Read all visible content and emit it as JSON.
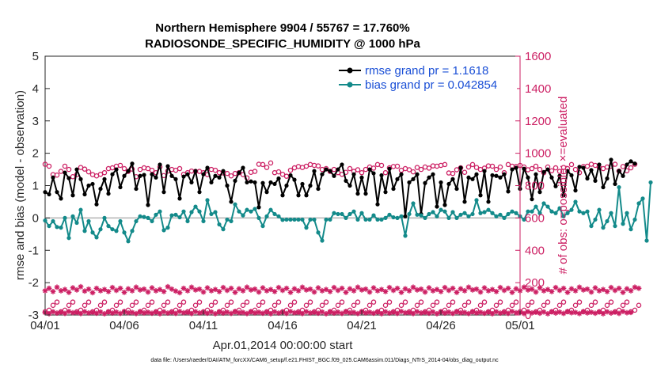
{
  "chart_data": {
    "type": "line",
    "title_line1": "Northern Hemisphere 9904 / 55767 = 17.760%",
    "title_line2": "RADIOSONDE_SPECIFIC_HUMIDITY @ 1000 hPa",
    "xlabel": "Apr.01,2014 00:00:00 start",
    "ylabel_left": "rmse and bias (model - observation)",
    "ylabel_right": "# of obs: o=possible; ×=evaluated",
    "x_tick_labels": [
      "04/01",
      "04/06",
      "04/11",
      "04/16",
      "04/21",
      "04/26",
      "05/01"
    ],
    "x_tick_days": [
      0,
      5,
      10,
      15,
      20,
      25,
      30
    ],
    "xlim_days": [
      0,
      30
    ],
    "ylim_left": [
      -3,
      5
    ],
    "y_ticks_left": [
      "-3",
      "-2",
      "-1",
      "0",
      "1",
      "2",
      "3",
      "4",
      "5"
    ],
    "ylim_right": [
      0,
      1600
    ],
    "y_ticks_right": [
      "0",
      "200",
      "400",
      "600",
      "800",
      "1000",
      "1200",
      "1400",
      "1600"
    ],
    "zero_line": 0,
    "legend": [
      {
        "label": "rmse grand pr = 1.1618",
        "color": "#000000"
      },
      {
        "label": "bias grand pr = 0.042854",
        "color": "#138a8a"
      }
    ],
    "colors": {
      "rmse": "#000000",
      "bias": "#138a8a",
      "counts": "#cc1f63",
      "zero": "#b3b3b3",
      "legend_text": "#1a4fd6"
    },
    "time_step_days": 0.25,
    "series": [
      {
        "name": "rmse",
        "axis": "left",
        "values": [
          0.8,
          0.73,
          1.25,
          0.8,
          0.6,
          1.4,
          1.23,
          0.7,
          1.5,
          1.2,
          0.73,
          1.0,
          1.05,
          0.42,
          0.9,
          1.2,
          0.75,
          1.35,
          1.5,
          0.95,
          1.3,
          1.45,
          1.68,
          0.9,
          1.3,
          1.33,
          0.4,
          1.35,
          1.25,
          1.65,
          0.8,
          1.6,
          1.3,
          1.2,
          0.6,
          1.28,
          1.35,
          1.1,
          1.45,
          0.8,
          1.35,
          1.55,
          1.1,
          1.3,
          1.25,
          1.45,
          1.0,
          0.5,
          1.15,
          1.4,
          1.55,
          1.1,
          1.13,
          1.1,
          0.33,
          1.08,
          0.8,
          1.1,
          1.05,
          1.22,
          0.7,
          1.0,
          1.32,
          1.18,
          0.7,
          1.05,
          0.7,
          1.0,
          1.45,
          0.9,
          1.35,
          1.5,
          1.45,
          1.3,
          1.5,
          1.65,
          1.15,
          1.0,
          1.35,
          0.75,
          1.25,
          0.75,
          1.5,
          1.38,
          0.42,
          1.32,
          0.8,
          1.52,
          0.9,
          1.2,
          1.35,
          0.05,
          1.1,
          1.2,
          1.35,
          0.12,
          1.08,
          1.25,
          1.35,
          0.35,
          1.1,
          0.4,
          1.05,
          1.2,
          0.9,
          1.55,
          0.5,
          1.25,
          1.2,
          1.35,
          0.7,
          1.45,
          0.5,
          1.32,
          1.3,
          1.25,
          1.35,
          0.82,
          1.5,
          1.55,
          0.9,
          1.52,
          1.25,
          0.58,
          1.35,
          0.8,
          1.42,
          1.5,
          1.25,
          0.98,
          1.3,
          0.7,
          1.45,
          1.32,
          0.85,
          1.58,
          1.55,
          1.22,
          1.48,
          1.15,
          1.65,
          0.95,
          1.22,
          1.8,
          1.05,
          1.45,
          1.3,
          1.65,
          1.75,
          1.68
        ]
      },
      {
        "name": "bias",
        "axis": "left",
        "values": [
          -0.08,
          -0.25,
          -0.1,
          -0.28,
          -0.3,
          0.0,
          -0.62,
          0.05,
          -0.15,
          0.25,
          -0.4,
          -0.1,
          -0.45,
          -0.6,
          -0.35,
          0.0,
          -0.25,
          -0.35,
          -0.4,
          -0.1,
          -0.45,
          -0.72,
          -0.4,
          -0.1,
          0.05,
          0.03,
          0.0,
          -0.1,
          0.1,
          0.2,
          -0.38,
          -0.3,
          0.08,
          0.1,
          0.02,
          0.2,
          -0.1,
          0.18,
          0.35,
          0.2,
          -0.1,
          0.55,
          0.12,
          0.18,
          -0.2,
          -0.35,
          -0.05,
          -0.1,
          0.42,
          0.2,
          0.08,
          0.25,
          0.2,
          0.28,
          0.0,
          -0.25,
          0.05,
          0.25,
          0.12,
          0.05,
          -0.06,
          -0.05,
          -0.05,
          -0.05,
          -0.05,
          -0.05,
          -0.3,
          -0.05,
          -0.05,
          -0.45,
          -0.7,
          -0.05,
          -0.05,
          0.15,
          0.12,
          0.12,
          0.0,
          0.12,
          0.2,
          -0.05,
          0.15,
          -0.05,
          -0.05,
          0.08,
          -0.05,
          -0.05,
          0.0,
          0.1,
          0.02,
          0.0,
          0.05,
          -0.55,
          0.12,
          0.45,
          0.1,
          0.08,
          0.0,
          0.12,
          0.18,
          0.05,
          0.25,
          0.2,
          0.0,
          0.18,
          0.0,
          0.1,
          0.15,
          0.05,
          0.12,
          0.55,
          0.15,
          0.18,
          0.25,
          0.15,
          0.05,
          0.1,
          0.0,
          0.12,
          0.2,
          0.15,
          0.05,
          -0.05,
          0.2,
          0.2,
          0.35,
          0.15,
          0.45,
          0.35,
          0.2,
          0.15,
          0.3,
          0.05,
          0.15,
          0.25,
          0.5,
          0.2,
          0.15,
          0.2,
          -0.25,
          -0.05,
          0.25,
          -0.3,
          -0.1,
          0.15,
          -0.25,
          0.95,
          -0.18,
          0.15,
          -0.35,
          -0.05,
          0.45,
          0.6,
          -0.7,
          1.1
        ]
      },
      {
        "name": "obs possible",
        "axis": "right",
        "values": [
          932,
          920,
          868,
          865,
          888,
          920,
          900,
          855,
          868,
          912,
          902,
          885,
          868,
          860,
          870,
          880,
          905,
          910,
          920,
          925,
          905,
          888,
          902,
          855,
          900,
          910,
          905,
          895,
          880,
          915,
          862,
          890,
          900,
          895,
          905,
          870,
          880,
          890,
          888,
          888,
          880,
          868,
          900,
          895,
          880,
          878,
          875,
          860,
          875,
          880,
          868,
          848,
          882,
          888,
          932,
          930,
          912,
          940,
          880,
          885,
          870,
          858,
          895,
          910,
          918,
          912,
          920,
          930,
          925,
          922,
          900,
          905,
          888,
          900,
          880,
          870,
          882,
          905,
          888,
          898,
          880,
          900,
          915,
          908,
          930,
          925,
          880,
          910,
          918,
          920,
          895,
          905,
          898,
          885,
          912,
          900,
          915,
          908,
          922,
          920,
          925,
          930,
          878,
          875,
          898,
          910,
          882,
          915,
          930,
          912,
          900,
          908,
          922,
          920,
          900,
          915,
          880,
          930,
          920,
          918,
          925,
          915,
          898,
          905,
          920,
          900,
          880,
          915,
          892,
          910,
          888,
          912,
          905,
          930,
          900,
          880,
          918,
          920,
          932,
          925,
          912,
          905,
          915,
          920,
          932,
          890,
          918,
          892,
          910,
          932
        ]
      },
      {
        "name": "obs possible low",
        "axis": "right",
        "values": [
          20,
          30,
          60,
          80,
          20,
          30,
          60,
          80,
          20,
          30,
          60,
          80,
          20,
          30,
          60,
          80,
          20,
          30,
          60,
          80,
          20,
          30,
          60,
          80,
          20,
          30,
          60,
          80,
          20,
          30,
          60,
          80,
          20,
          30,
          60,
          80,
          20,
          30,
          60,
          80,
          20,
          30,
          60,
          80,
          20,
          30,
          60,
          80,
          20,
          30,
          60,
          80,
          20,
          30,
          60,
          80,
          20,
          30,
          60,
          80,
          20,
          30,
          60,
          80,
          20,
          30,
          60,
          80,
          20,
          30,
          60,
          80,
          20,
          30,
          60,
          80,
          20,
          30,
          60,
          80,
          20,
          30,
          60,
          80,
          20,
          30,
          60,
          80,
          20,
          30,
          60,
          80,
          20,
          30,
          60,
          80,
          20,
          30,
          60,
          80,
          20,
          30,
          60,
          80,
          20,
          30,
          60,
          80,
          20,
          30,
          60,
          80,
          20,
          30,
          60,
          80,
          20,
          30,
          60,
          80,
          20,
          30,
          60,
          80,
          20,
          30,
          60,
          80,
          20,
          30,
          60,
          80,
          20,
          30,
          60,
          80,
          20,
          30,
          60,
          80,
          20,
          30,
          60,
          80,
          20,
          30,
          60,
          80,
          20,
          30,
          60
        ]
      },
      {
        "name": "obs evaluated",
        "axis": "right",
        "values": [
          150,
          165,
          145,
          172,
          150,
          158,
          140,
          168,
          155,
          175,
          148,
          160,
          138,
          165,
          150,
          158,
          145,
          170,
          152,
          165,
          140,
          162,
          150,
          172,
          155,
          160,
          142,
          168,
          150,
          158,
          145,
          175,
          160,
          148,
          138,
          165,
          150,
          172,
          155,
          160,
          142,
          168,
          150,
          158,
          145,
          170,
          152,
          165,
          140,
          162,
          150,
          172,
          155,
          160,
          142,
          168,
          150,
          158,
          145,
          170,
          152,
          165,
          140,
          162,
          150,
          172,
          155,
          160,
          142,
          168,
          150,
          158,
          145,
          170,
          152,
          165,
          140,
          162,
          150,
          172,
          155,
          160,
          142,
          168,
          150,
          158,
          145,
          170,
          152,
          165,
          140,
          162,
          150,
          172,
          155,
          160,
          142,
          168,
          150,
          158,
          145,
          170,
          152,
          165,
          140,
          162,
          150,
          172,
          155,
          160,
          142,
          168,
          150,
          158,
          145,
          170,
          152,
          165,
          140,
          162,
          150,
          172,
          155,
          160,
          142,
          168,
          150,
          158,
          145,
          170,
          152,
          165,
          140,
          162,
          150,
          172,
          155,
          160,
          142,
          168,
          150,
          158,
          145,
          170,
          152,
          165,
          140,
          162,
          150,
          172,
          165
        ]
      },
      {
        "name": "obs evaluated low",
        "axis": "right",
        "values": [
          15,
          8,
          20,
          12,
          18,
          10,
          22,
          14,
          16,
          9,
          21,
          13,
          17,
          11,
          19,
          8,
          20,
          12,
          18,
          10,
          22,
          14,
          16,
          9,
          21,
          13,
          17,
          11,
          19,
          8,
          20,
          12,
          18,
          10,
          22,
          14,
          16,
          9,
          21,
          13,
          17,
          11,
          19,
          8,
          20,
          12,
          18,
          10,
          22,
          14,
          16,
          9,
          21,
          13,
          17,
          11,
          19,
          8,
          20,
          12,
          18,
          10,
          22,
          14,
          16,
          9,
          21,
          13,
          17,
          11,
          19,
          8,
          20,
          12,
          18,
          10,
          22,
          14,
          16,
          9,
          21,
          13,
          17,
          11,
          19,
          8,
          20,
          12,
          18,
          10,
          22,
          14,
          16,
          9,
          21,
          13,
          17,
          11,
          19,
          8,
          20,
          12,
          18,
          10,
          22,
          14,
          16,
          9,
          21,
          13,
          17,
          11,
          19,
          8,
          20,
          12,
          18,
          10,
          22,
          14,
          16,
          9,
          21,
          13,
          17,
          11,
          19,
          8,
          20,
          12,
          18,
          10,
          22,
          14,
          16,
          9,
          21,
          13,
          17,
          11,
          19,
          8,
          20,
          12,
          18,
          10,
          22,
          14,
          16
        ]
      }
    ]
  },
  "footer": "data file: /Users/raeder/DAI/ATM_forcXX/CAM6_setup/f.e21.FHIST_BGC.f09_025.CAM6assim.011/Diags_NTrS_2014-04/obs_diag_output.nc"
}
